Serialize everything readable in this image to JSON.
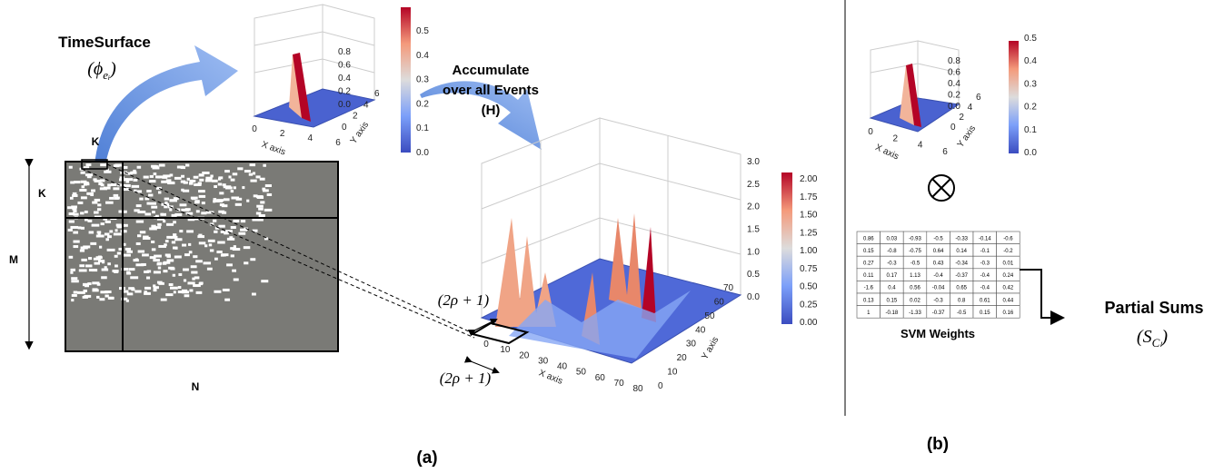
{
  "panel_a": {
    "timesurface": {
      "title": "TimeSurface",
      "symbol": {
        "open": "(ϕ",
        "sub": "eᵢ",
        "close": ")"
      }
    },
    "small_plot": {
      "x_axis": "X axis",
      "y_axis": "Y axis",
      "x_ticks": [
        "0",
        "2",
        "4",
        "6"
      ],
      "y_ticks": [
        "0",
        "2",
        "4",
        "6"
      ],
      "z_ticks": [
        "0.0",
        "0.2",
        "0.4",
        "0.6",
        "0.8"
      ],
      "colorbar_ticks": [
        "0.0",
        "0.1",
        "0.2",
        "0.3",
        "0.4",
        "0.5"
      ]
    },
    "event_frame": {
      "k_top": "K",
      "k_side": "K",
      "m": "M",
      "n": "N"
    },
    "accumulate": {
      "line1": "Accumulate",
      "line2": "over all Events",
      "line3": "(H)"
    },
    "big_plot": {
      "x_axis": "X axis",
      "y_axis": "Y axis",
      "x_ticks": [
        "0",
        "10",
        "20",
        "30",
        "40",
        "50",
        "60",
        "70",
        "80"
      ],
      "y_ticks": [
        "0",
        "10",
        "20",
        "30",
        "40",
        "50",
        "60",
        "70"
      ],
      "z_ticks": [
        "0.0",
        "0.5",
        "1.0",
        "1.5",
        "2.0",
        "2.5",
        "3.0"
      ],
      "colorbar_ticks": [
        "0.00",
        "0.25",
        "0.50",
        "0.75",
        "1.00",
        "1.25",
        "1.50",
        "1.75",
        "2.00"
      ]
    },
    "window_labels": [
      "(2ρ + 1)",
      "(2ρ + 1)"
    ],
    "caption": "(a)"
  },
  "panel_b": {
    "small_plot": {
      "x_axis": "X axis",
      "y_axis": "Y axis",
      "x_ticks": [
        "0",
        "2",
        "4",
        "6"
      ],
      "y_ticks": [
        "0",
        "2",
        "4",
        "6"
      ],
      "z_ticks": [
        "0.0",
        "0.2",
        "0.4",
        "0.6",
        "0.8"
      ],
      "colorbar_ticks": [
        "0.0",
        "0.1",
        "0.2",
        "0.3",
        "0.4",
        "0.5"
      ]
    },
    "svm_table": {
      "rows": [
        [
          0.86,
          0.03,
          -0.93,
          -0.5,
          -0.33,
          -0.14,
          -0.6
        ],
        [
          0.15,
          -0.8,
          -0.75,
          0.64,
          0.14,
          -0.1,
          -0.2
        ],
        [
          0.27,
          -0.3,
          -0.5,
          0.43,
          -0.34,
          -0.3,
          0.01
        ],
        [
          0.11,
          0.17,
          1.13,
          -0.4,
          -0.37,
          -0.4,
          0.24
        ],
        [
          -1.6,
          0.4,
          0.56,
          -0.04,
          0.65,
          -0.4,
          0.42
        ],
        [
          0.13,
          0.15,
          0.02,
          -0.3,
          0.8,
          0.61,
          0.44
        ],
        [
          1,
          -0.18,
          -1.33,
          -0.37,
          -0.5,
          0.15,
          0.16
        ]
      ],
      "label": "SVM Weights"
    },
    "partial_sums": {
      "title": "Partial Sums",
      "symbol": {
        "open": "(S",
        "sub": "Cₗ",
        "close": ")"
      }
    },
    "caption": "(b)"
  }
}
